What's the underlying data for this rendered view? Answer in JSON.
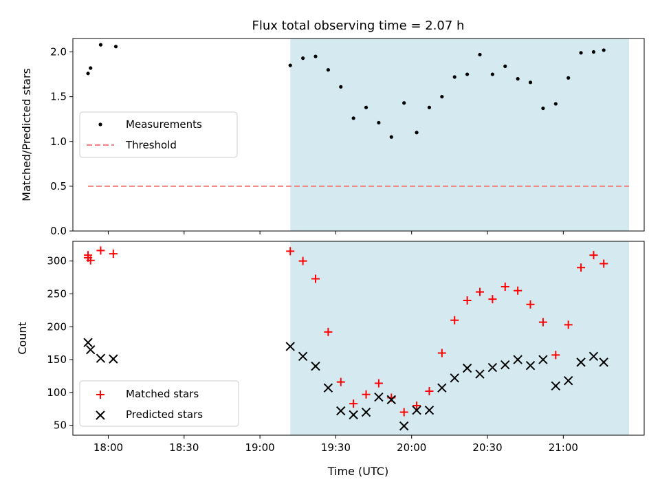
{
  "chart_data": [
    {
      "type": "scatter",
      "title": "Flux total observing time = 2.07 h",
      "xlabel": "",
      "ylabel": "Matched/Predicted stars",
      "xlim": [
        "17:46",
        "21:32"
      ],
      "ylim": [
        0,
        2.15
      ],
      "yticks": [
        "0.0",
        "0.5",
        "1.0",
        "1.5",
        "2.0"
      ],
      "grid": false,
      "legend_position": "center-left",
      "shaded_interval": {
        "start": "19:12",
        "end": "21:26",
        "color": "#d4eaf0"
      },
      "threshold": {
        "name": "Threshold",
        "value": 0.5,
        "x_start": "17:52",
        "x_end": "21:26",
        "color": "#f08080"
      },
      "series": [
        {
          "name": "Measurements",
          "marker": "dot",
          "color": "#000000",
          "x": [
            "17:52",
            "17:53",
            "17:57",
            "18:03",
            "19:12",
            "19:17",
            "19:22",
            "19:27",
            "19:32",
            "19:37",
            "19:42",
            "19:47",
            "19:52",
            "19:57",
            "20:02",
            "20:07",
            "20:12",
            "20:17",
            "20:22",
            "20:27",
            "20:32",
            "20:37",
            "20:42",
            "20:47",
            "20:52",
            "20:57",
            "21:02",
            "21:07",
            "21:12",
            "21:16"
          ],
          "y": [
            1.76,
            1.82,
            2.08,
            2.06,
            1.85,
            1.93,
            1.95,
            1.8,
            1.61,
            1.26,
            1.38,
            1.21,
            1.05,
            1.43,
            1.1,
            1.38,
            1.5,
            1.72,
            1.75,
            1.97,
            1.75,
            1.84,
            1.7,
            1.66,
            1.37,
            1.42,
            1.71,
            1.99,
            2.0,
            2.02
          ]
        }
      ]
    },
    {
      "type": "scatter",
      "title": "",
      "xlabel": "Time (UTC)",
      "ylabel": "Count",
      "xlim": [
        "17:46",
        "21:32"
      ],
      "ylim": [
        35,
        330
      ],
      "xticks": [
        "18:00",
        "18:30",
        "19:00",
        "19:30",
        "20:00",
        "20:30",
        "21:00"
      ],
      "yticks": [
        "50",
        "100",
        "150",
        "200",
        "250",
        "300"
      ],
      "grid": false,
      "legend_position": "bottom-left",
      "shaded_interval": {
        "start": "19:12",
        "end": "21:26",
        "color": "#d4eaf0"
      },
      "series": [
        {
          "name": "Matched stars",
          "marker": "plus",
          "color": "#ff0000",
          "x": [
            "17:52",
            "17:52",
            "17:53",
            "17:57",
            "18:02",
            "19:12",
            "19:17",
            "19:22",
            "19:27",
            "19:32",
            "19:37",
            "19:42",
            "19:47",
            "19:52",
            "19:57",
            "20:02",
            "20:07",
            "20:12",
            "20:17",
            "20:22",
            "20:27",
            "20:32",
            "20:37",
            "20:42",
            "20:47",
            "20:52",
            "20:57",
            "21:02",
            "21:07",
            "21:12",
            "21:16"
          ],
          "y": [
            309,
            305,
            301,
            316,
            311,
            315,
            300,
            273,
            192,
            116,
            83,
            97,
            114,
            92,
            70,
            80,
            102,
            160,
            210,
            240,
            253,
            242,
            261,
            255,
            234,
            207,
            157,
            203,
            290,
            309,
            296
          ]
        },
        {
          "name": "Predicted stars",
          "marker": "x",
          "color": "#000000",
          "x": [
            "17:52",
            "17:53",
            "17:57",
            "18:02",
            "19:12",
            "19:17",
            "19:22",
            "19:27",
            "19:32",
            "19:37",
            "19:42",
            "19:47",
            "19:52",
            "19:57",
            "20:02",
            "20:07",
            "20:12",
            "20:17",
            "20:22",
            "20:27",
            "20:32",
            "20:37",
            "20:42",
            "20:47",
            "20:52",
            "20:57",
            "21:02",
            "21:07",
            "21:12",
            "21:16"
          ],
          "y": [
            176,
            165,
            152,
            151,
            170,
            155,
            140,
            107,
            72,
            66,
            70,
            93,
            89,
            49,
            73,
            73,
            107,
            122,
            137,
            128,
            138,
            142,
            150,
            141,
            150,
            110,
            118,
            146,
            155,
            146
          ]
        }
      ]
    }
  ]
}
